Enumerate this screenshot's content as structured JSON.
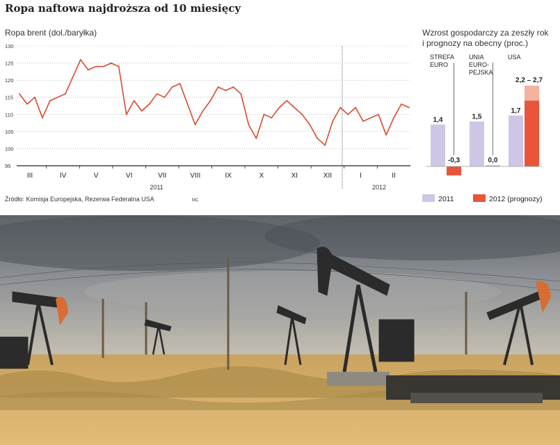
{
  "title": "Ropa naftowa najdroższa od 10 miesięcy",
  "source": "Źródło: Komisja Europejska, Rezerwa Federalna USA",
  "author_tag": "MC",
  "colors": {
    "line": "#d94a2b",
    "bar_2011": "#cfc6e6",
    "bar_2012": "#e8553a",
    "bar_2012_range": "#f3b3a0",
    "grid": "#9a9a9a"
  },
  "chart_data": [
    {
      "type": "line",
      "title": "Ropa brent (dol./baryłka)",
      "ylim": [
        95,
        130
      ],
      "yticks": [
        95,
        100,
        105,
        110,
        115,
        120,
        125,
        130
      ],
      "grid": "dotted horizontal",
      "month_labels": [
        "III",
        "IV",
        "V",
        "VI",
        "VII",
        "VIII",
        "IX",
        "X",
        "XI",
        "XII",
        "I",
        "II"
      ],
      "year_labels": [
        "2011",
        "2012"
      ],
      "x": [
        0,
        1,
        2,
        3,
        4,
        5,
        6,
        7,
        8,
        9,
        10,
        11,
        12,
        13,
        14,
        15,
        16,
        17,
        18,
        19,
        20,
        21,
        22,
        23,
        24,
        25,
        26,
        27,
        28,
        29,
        30,
        31,
        32,
        33,
        34,
        35,
        36,
        37,
        38,
        39,
        40,
        41,
        42,
        43,
        44,
        45,
        46,
        47,
        48,
        49,
        50,
        51
      ],
      "values": [
        116,
        113,
        115,
        109,
        114,
        115,
        116,
        121,
        126,
        123,
        124,
        124,
        125,
        124,
        110,
        114,
        111,
        113,
        116,
        115,
        118,
        119,
        113,
        107,
        111,
        114,
        118,
        117,
        118,
        116,
        107,
        103,
        110,
        109,
        112,
        114,
        112,
        110,
        107,
        103,
        101,
        108,
        112,
        110,
        112,
        108,
        109,
        110,
        104,
        109,
        113,
        112
      ]
    },
    {
      "type": "bar",
      "title": "Wzrost gospodarczy za zeszły rok i prognozy na obecny (proc.)",
      "categories": [
        "STREFA EURO",
        "UNIA EUROPEJSKA",
        "USA"
      ],
      "category_labels": [
        [
          "STREFA",
          "EURO"
        ],
        [
          "UNIA",
          "EURO-",
          "PEJSKA"
        ],
        [
          "USA"
        ]
      ],
      "series": [
        {
          "name": "2011",
          "values": [
            1.4,
            1.5,
            1.7
          ],
          "labels": [
            "1,4",
            "1,5",
            "1,7"
          ]
        },
        {
          "name": "2012 (prognozy)",
          "values": [
            -0.3,
            0.0,
            2.2
          ],
          "range_high": [
            null,
            null,
            2.7
          ],
          "labels": [
            "-0,3",
            "0,0",
            "2,2 – 2,7"
          ]
        }
      ],
      "ylim": [
        -0.3,
        2.7
      ]
    }
  ]
}
